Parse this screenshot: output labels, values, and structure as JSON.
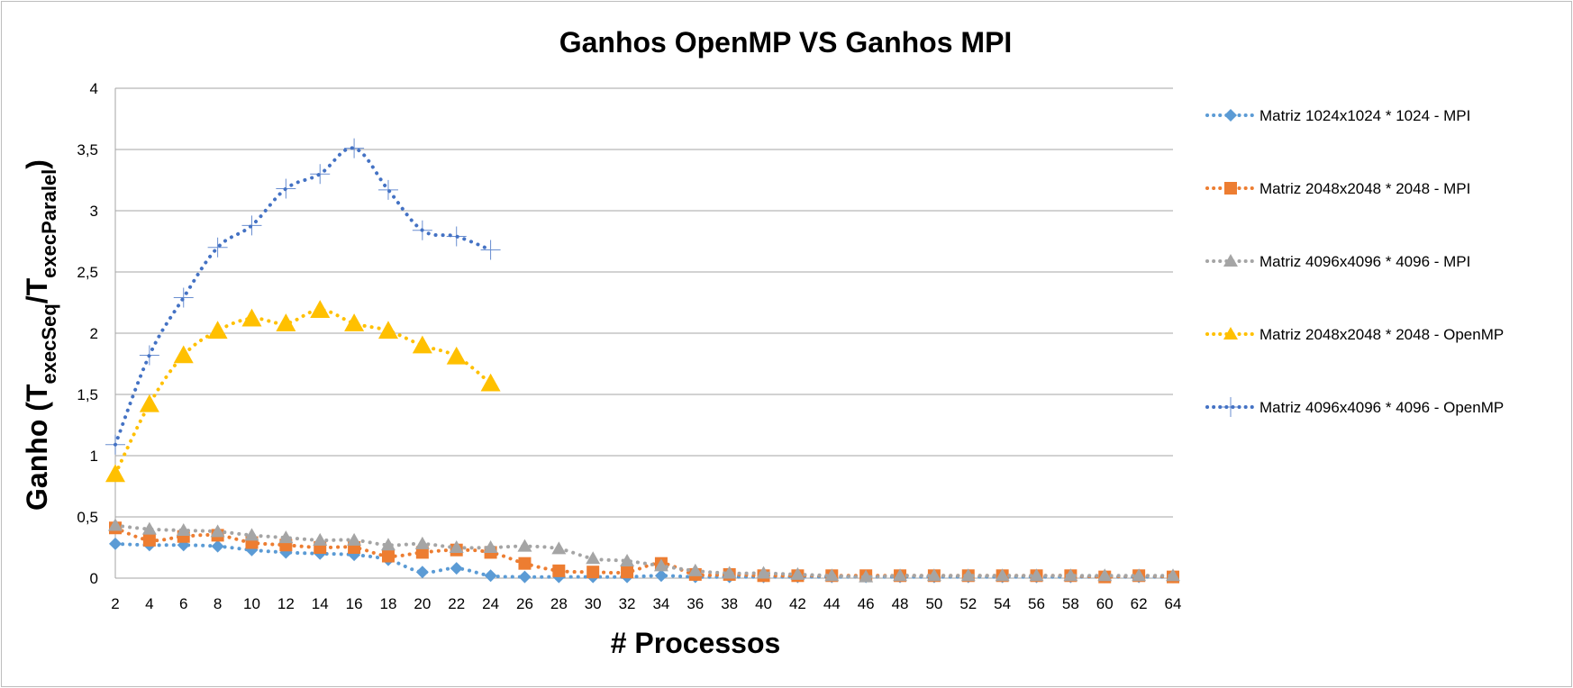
{
  "chart_data": {
    "type": "line",
    "title": "Ganhos OpenMP VS Ganhos MPI",
    "xlabel": "# Processos",
    "ylabel": {
      "main": "Ganho (T",
      "sub1": "execSeq",
      "mid": "/T",
      "sub2": "execParalel",
      "end": ")"
    },
    "ylim": [
      0,
      4
    ],
    "y_ticks": [
      "0",
      "0,5",
      "1",
      "1,5",
      "2",
      "2,5",
      "3",
      "3,5",
      "4"
    ],
    "y_tick_values": [
      0,
      0.5,
      1,
      1.5,
      2,
      2.5,
      3,
      3.5,
      4
    ],
    "categories": [
      "2",
      "4",
      "6",
      "8",
      "10",
      "12",
      "14",
      "16",
      "18",
      "20",
      "22",
      "24",
      "26",
      "28",
      "30",
      "32",
      "34",
      "36",
      "38",
      "40",
      "42",
      "44",
      "46",
      "48",
      "50",
      "52",
      "54",
      "56",
      "58",
      "60",
      "62",
      "64"
    ],
    "grid": true,
    "legend_position": "right",
    "series": [
      {
        "name": "Matriz 1024x1024 * 1024 - MPI",
        "color": "#5b9bd5",
        "marker": "diamond",
        "values": [
          0.28,
          0.27,
          0.27,
          0.26,
          0.23,
          0.21,
          0.2,
          0.19,
          0.15,
          0.05,
          0.08,
          0.02,
          0.01,
          0.01,
          0.01,
          0.01,
          0.02,
          0.01,
          0.01,
          0.01,
          0.01,
          0.01,
          0.01,
          0.01,
          0.01,
          0.01,
          0.01,
          0.01,
          0.01,
          0.01,
          0.01,
          0.01
        ]
      },
      {
        "name": "Matriz 2048x2048 * 2048 - MPI",
        "color": "#ed7d31",
        "marker": "square",
        "values": [
          0.41,
          0.31,
          0.34,
          0.35,
          0.29,
          0.27,
          0.25,
          0.25,
          0.18,
          0.21,
          0.23,
          0.21,
          0.12,
          0.06,
          0.05,
          0.05,
          0.12,
          0.03,
          0.03,
          0.02,
          0.02,
          0.02,
          0.02,
          0.02,
          0.02,
          0.02,
          0.02,
          0.02,
          0.02,
          0.01,
          0.02,
          0.01
        ]
      },
      {
        "name": "Matriz 4096x4096 * 4096 - MPI",
        "color": "#a5a5a5",
        "marker": "triangle",
        "values": [
          0.43,
          0.4,
          0.39,
          0.38,
          0.35,
          0.33,
          0.31,
          0.31,
          0.27,
          0.28,
          0.25,
          0.25,
          0.26,
          0.24,
          0.16,
          0.14,
          0.1,
          0.06,
          0.04,
          0.04,
          0.03,
          0.02,
          0.01,
          0.02,
          0.02,
          0.02,
          0.02,
          0.02,
          0.02,
          0.02,
          0.02,
          0.02
        ]
      },
      {
        "name": "Matriz 2048x2048 * 2048 - OpenMP",
        "color": "#ffc000",
        "marker": "triangle-large",
        "values": [
          0.85,
          1.42,
          1.82,
          2.02,
          2.12,
          2.08,
          2.19,
          2.08,
          2.02,
          1.9,
          1.81,
          1.59,
          null,
          null,
          null,
          null,
          null,
          null,
          null,
          null,
          null,
          null,
          null,
          null,
          null,
          null,
          null,
          null,
          null,
          null,
          null,
          null
        ]
      },
      {
        "name": "Matriz 4096x4096 * 4096 - OpenMP",
        "color": "#4472c4",
        "marker": "cross",
        "values": [
          1.09,
          1.82,
          2.29,
          2.7,
          2.88,
          3.18,
          3.3,
          3.51,
          3.17,
          2.84,
          2.79,
          2.68,
          null,
          null,
          null,
          null,
          null,
          null,
          null,
          null,
          null,
          null,
          null,
          null,
          null,
          null,
          null,
          null,
          null,
          null,
          null,
          null
        ]
      }
    ]
  }
}
